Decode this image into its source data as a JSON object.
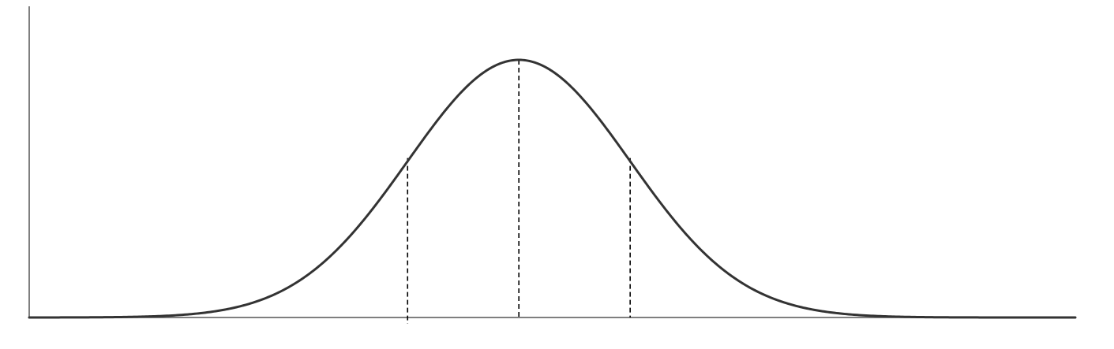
{
  "chart_data": {
    "type": "line",
    "title": "",
    "xlabel": "",
    "ylabel": "",
    "distribution": "normal",
    "mean": 0,
    "sd": 1,
    "xlim": [
      -4.4,
      5
    ],
    "ylim": [
      0,
      0.4
    ],
    "grid": false,
    "legend": "none",
    "markers": [
      {
        "x": -1,
        "style": "dashed"
      },
      {
        "x": 0,
        "style": "dashed"
      },
      {
        "x": 1,
        "style": "dashed"
      }
    ],
    "colors": {
      "curve": "#333333",
      "axis": "#555555",
      "marker": "#000000"
    }
  }
}
